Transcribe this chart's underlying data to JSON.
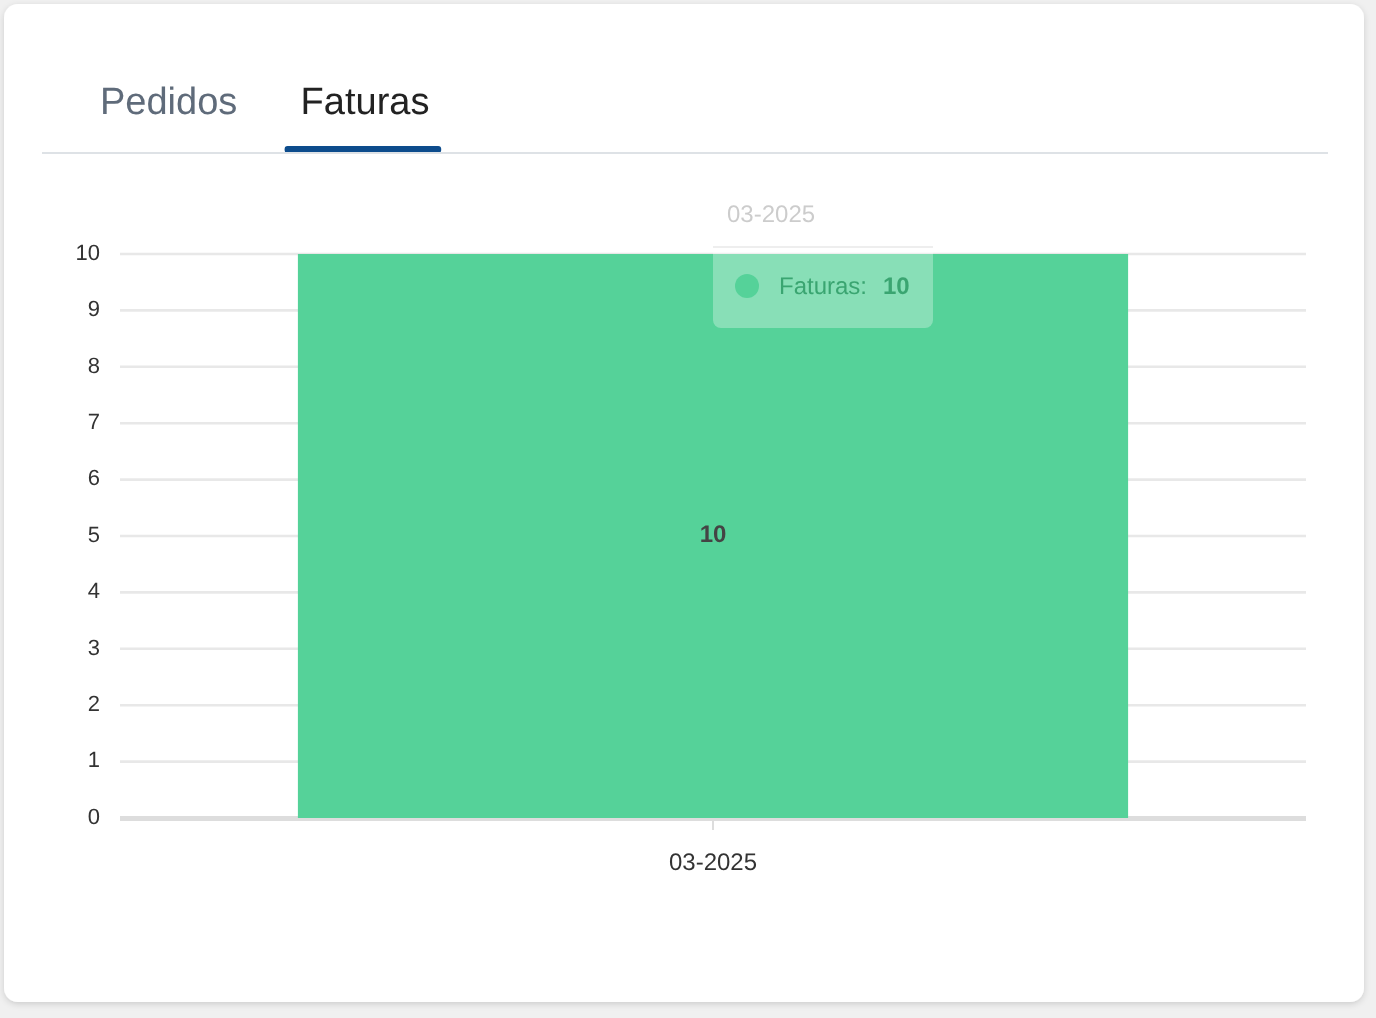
{
  "chart_data": {
    "type": "bar",
    "title": "Faturas",
    "annotations": [
      "Pedidos",
      "10"
    ],
    "categories": [
      "03-2025"
    ],
    "series": [
      {
        "name": "Faturas:",
        "color": "#55d299",
        "values": [
          10
        ]
      }
    ],
    "ylim": [
      0,
      10
    ],
    "yticks": [
      0,
      1,
      2,
      3,
      4,
      5,
      6,
      7,
      8,
      9,
      10
    ],
    "grid": "y",
    "data_labels": true,
    "legend": "top",
    "legend_title": "03-2025"
  }
}
